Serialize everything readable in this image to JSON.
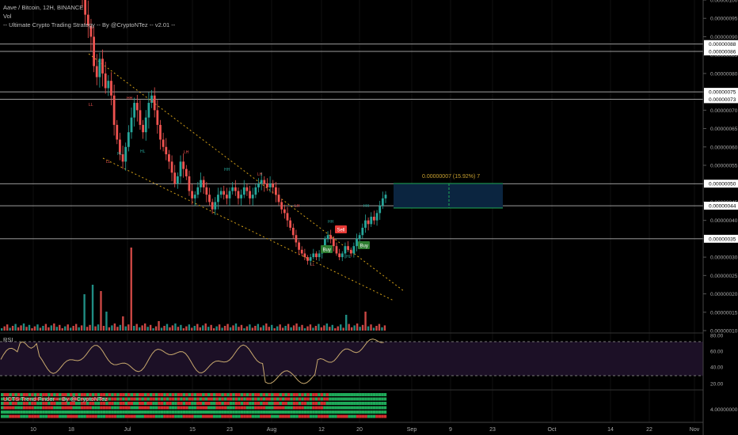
{
  "header": {
    "symbol": "Aave / Bitcoin, 12H, BINANCE",
    "vol": "Vol",
    "strategy": "-- Ultimate Crypto Trading Strategy -- By @CryptoNTez -- v2.01 --"
  },
  "rsi_label": "RSI",
  "trend_label": "UCTS Trend Finder -- By @CryptoNTez",
  "measure_label": "0.00000007 (15.92%) 7",
  "signals": {
    "buy": "Buy",
    "sell": "Sell"
  },
  "colors": {
    "up": "#26a69a",
    "down": "#ef5350",
    "rsi": "#c8a96e",
    "rsi_band": "#2a1a3a",
    "sell": "#e53935",
    "buy": "#2e7d32",
    "channel": "#d4a017"
  },
  "price_axis": {
    "ticks": [
      "0.00000100",
      "0.00000095",
      "0.00000090",
      "0.00000085",
      "0.00000080",
      "0.00000075",
      "0.00000070",
      "0.00000065",
      "0.00000060",
      "0.00000055",
      "0.00000050",
      "0.00000045",
      "0.00000040",
      "0.00000035",
      "0.00000030",
      "0.00000025",
      "0.00000020",
      "0.00000015",
      "0.00000010"
    ],
    "highlighted": [
      "0.00000088",
      "0.00000086",
      "0.00000075",
      "0.00000073",
      "0.00000050",
      "0.00000044",
      "0.00000035"
    ]
  },
  "rsi_axis": {
    "ticks": [
      "80.00",
      "60.00",
      "40.00",
      "20.00"
    ]
  },
  "trend_axis": {
    "tick": "4.00000000"
  },
  "time_axis": {
    "ticks": [
      "10",
      "18",
      "Jul",
      "15",
      "23",
      "Aug",
      "12",
      "20",
      "Sep",
      "9",
      "23",
      "Oct",
      "14",
      "22",
      "Nov"
    ]
  },
  "chart_data": {
    "type": "candlestick",
    "title": "Aave / Bitcoin, 12H, BINANCE",
    "y_range": [
      1e-07,
      1e-06
    ],
    "levels": [
      8.8e-07,
      8.6e-07,
      7.5e-07,
      7.3e-07,
      5e-07,
      4.4e-07,
      3.5e-07
    ],
    "close_series": [
      1e-06,
      9.6e-07,
      9.3e-07,
      9e-07,
      8.2e-07,
      7.9e-07,
      8.4e-07,
      8e-07,
      7.6e-07,
      7.8e-07,
      7.4e-07,
      6.6e-07,
      6.2e-07,
      5.8e-07,
      5.6e-07,
      6e-07,
      6.4e-07,
      6.8e-07,
      7.2e-07,
      7e-07,
      6.6e-07,
      6.4e-07,
      6.8e-07,
      7.2e-07,
      7.4e-07,
      7e-07,
      6.6e-07,
      6.2e-07,
      6e-07,
      5.8e-07,
      5.6e-07,
      5.3e-07,
      5e-07,
      5.2e-07,
      5.6e-07,
      5.4e-07,
      5.2e-07,
      4.8e-07,
      4.6e-07,
      4.7e-07,
      4.9e-07,
      5.1e-07,
      4.9e-07,
      4.7e-07,
      4.5e-07,
      4.3e-07,
      4.5e-07,
      4.7e-07,
      4.8e-07,
      4.7e-07,
      4.6e-07,
      4.8e-07,
      4.9e-07,
      4.8e-07,
      4.6e-07,
      4.7e-07,
      4.9e-07,
      4.8e-07,
      4.6e-07,
      4.7e-07,
      4.9e-07,
      5e-07,
      5.1e-07,
      5e-07,
      4.9e-07,
      5e-07,
      4.9e-07,
      4.7e-07,
      4.5e-07,
      4.3e-07,
      4.2e-07,
      4e-07,
      3.8e-07,
      3.6e-07,
      3.4e-07,
      3.2e-07,
      3.1e-07,
      3e-07,
      2.9e-07,
      3e-07,
      3.1e-07,
      3e-07,
      3.1e-07,
      3.2e-07,
      3.5e-07,
      3.6e-07,
      3.5e-07,
      3.3e-07,
      3.1e-07,
      3e-07,
      3.1e-07,
      3.3e-07,
      3.2e-07,
      3.1e-07,
      3.3e-07,
      3.5e-07,
      3.6e-07,
      3.8e-07,
      4e-07,
      3.9e-07,
      4.1e-07,
      4e-07,
      4.2e-07,
      4.4e-07,
      4.6e-07,
      4.7e-07
    ]
  }
}
